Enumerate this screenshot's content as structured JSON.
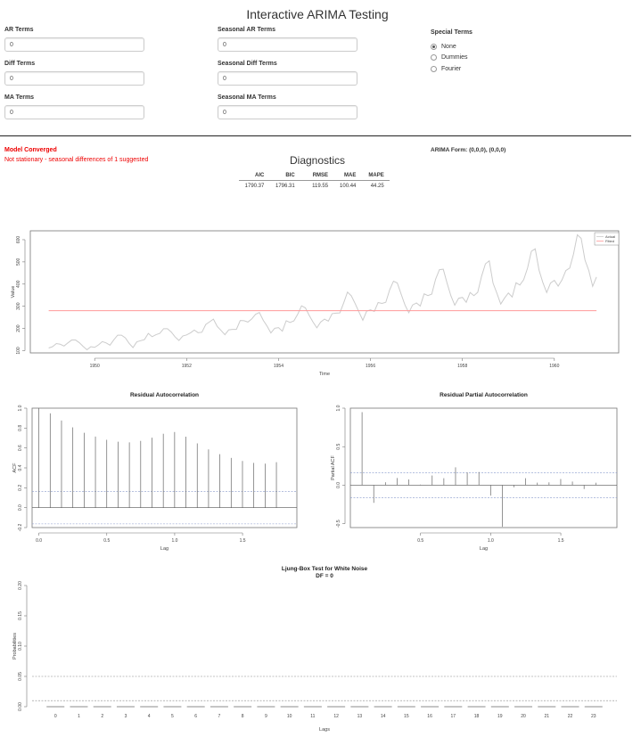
{
  "page": {
    "title": "Interactive ARIMA Testing"
  },
  "inputs": {
    "ar": {
      "label": "AR Terms",
      "value": "0"
    },
    "diff": {
      "label": "Diff Terms",
      "value": "0"
    },
    "ma": {
      "label": "MA Terms",
      "value": "0"
    },
    "sar": {
      "label": "Seasonal AR Terms",
      "value": "0"
    },
    "sdiff": {
      "label": "Seasonal Diff Terms",
      "value": "0"
    },
    "sma": {
      "label": "Seasonal MA Terms",
      "value": "0"
    }
  },
  "special_terms": {
    "label": "Special Terms",
    "options": [
      "None",
      "Dummies",
      "Fourier"
    ],
    "selected": "None"
  },
  "status": {
    "converged": "Model Converged",
    "stationarity": "Not stationary - seasonal differences of 1 suggested"
  },
  "arima_form": "ARIMA Form: (0,0,0), (0,0,0)",
  "diagnostics": {
    "title": "Diagnostics",
    "headers": [
      "AIC",
      "BIC",
      "RMSE",
      "MAE",
      "MAPE"
    ],
    "values": [
      "1790.37",
      "1796.31",
      "119.55",
      "100.44",
      "44.25"
    ]
  },
  "colors": {
    "fitted": "#ff9999",
    "actual": "#cccccc",
    "status": "#ee0000",
    "lines": "#555555"
  },
  "chart_data": [
    {
      "type": "line",
      "title": "",
      "xlabel": "Time",
      "ylabel": "Value",
      "xlim": [
        1948.6,
        1961.4
      ],
      "ylim": [
        90,
        640
      ],
      "x_ticks": [
        "1950",
        "1952",
        "1954",
        "1956",
        "1958",
        "1960"
      ],
      "y_ticks": [
        "100",
        "200",
        "300",
        "400",
        "500",
        "600"
      ],
      "legend": {
        "placement": "top-right",
        "entries": [
          "Actual",
          "Fitted"
        ]
      },
      "series": [
        {
          "name": "Actual",
          "start": 1949,
          "frequency": 12,
          "values": [
            112,
            118,
            132,
            129,
            121,
            135,
            148,
            148,
            136,
            119,
            104,
            118,
            115,
            126,
            141,
            135,
            125,
            149,
            170,
            170,
            158,
            133,
            114,
            140,
            145,
            150,
            178,
            163,
            172,
            178,
            199,
            199,
            184,
            162,
            146,
            166,
            171,
            180,
            193,
            181,
            183,
            218,
            230,
            242,
            209,
            191,
            172,
            194,
            196,
            196,
            236,
            235,
            229,
            243,
            264,
            272,
            237,
            211,
            180,
            201,
            204,
            188,
            235,
            227,
            234,
            264,
            302,
            293,
            259,
            229,
            203,
            229,
            242,
            233,
            267,
            269,
            270,
            315,
            364,
            347,
            312,
            274,
            237,
            278,
            284,
            277,
            317,
            313,
            318,
            374,
            413,
            405,
            355,
            306,
            271,
            306,
            315,
            301,
            356,
            348,
            355,
            422,
            465,
            467,
            404,
            347,
            305,
            336,
            340,
            318,
            362,
            348,
            363,
            435,
            491,
            505,
            404,
            359,
            310,
            337,
            360,
            342,
            406,
            396,
            420,
            472,
            548,
            559,
            463,
            407,
            362,
            405,
            417,
            391,
            419,
            461,
            472,
            535,
            622,
            606,
            508,
            461,
            390,
            432
          ]
        },
        {
          "name": "Fitted",
          "start": 1949,
          "end": 1960.917,
          "values": [
            280.3,
            280.3
          ]
        }
      ]
    },
    {
      "type": "bar",
      "title": "Residual Autocorrelation",
      "xlabel": "Lag",
      "ylabel": "ACF",
      "xlim": [
        -0.05,
        1.9
      ],
      "ylim": [
        -0.2,
        1.0
      ],
      "x_ticks": [
        "0.0",
        "0.5",
        "1.0",
        "1.5"
      ],
      "y_ticks": [
        "-0.2",
        "0.0",
        "0.2",
        "0.4",
        "0.6",
        "0.8",
        "1.0"
      ],
      "ci": 0.163,
      "lag_step": 0.0833,
      "values": [
        1.0,
        0.948,
        0.876,
        0.807,
        0.753,
        0.714,
        0.682,
        0.663,
        0.656,
        0.671,
        0.703,
        0.743,
        0.76,
        0.713,
        0.646,
        0.586,
        0.538,
        0.5,
        0.469,
        0.45,
        0.442,
        0.457
      ]
    },
    {
      "type": "bar",
      "title": "Residual Partial Autocorrelation",
      "xlabel": "Lag",
      "ylabel": "Partial ACF",
      "xlim": [
        0.0,
        1.9
      ],
      "ylim": [
        -0.55,
        1.0
      ],
      "x_ticks": [
        "0.5",
        "1.0",
        "1.5"
      ],
      "y_ticks": [
        "-0.5",
        "0.0",
        "0.5",
        "1.0"
      ],
      "ci": 0.163,
      "lag_step": 0.0833,
      "values": [
        0.948,
        -0.229,
        0.038,
        0.094,
        0.074,
        0.008,
        0.126,
        0.09,
        0.232,
        0.166,
        0.171,
        -0.135,
        -0.54,
        -0.027,
        0.091,
        0.033,
        0.037,
        0.081,
        0.047,
        -0.05,
        0.032
      ]
    },
    {
      "type": "scatter",
      "title": "Ljung-Box Test for White Noise",
      "subtitle": "DF = 0",
      "xlabel": "Lags",
      "ylabel": "Probabilities",
      "xlim": [
        -1,
        24
      ],
      "ylim": [
        0,
        0.2
      ],
      "x_ticks": [
        "0",
        "1",
        "2",
        "3",
        "4",
        "5",
        "6",
        "7",
        "8",
        "9",
        "10",
        "11",
        "12",
        "13",
        "14",
        "15",
        "16",
        "17",
        "18",
        "19",
        "20",
        "21",
        "22",
        "23"
      ],
      "y_ticks": [
        "0.00",
        "0.05",
        "0.10",
        "0.15",
        "0.20"
      ],
      "reference_lines": [
        0.05,
        0.01
      ],
      "values": [
        0,
        0,
        0,
        0,
        0,
        0,
        0,
        0,
        0,
        0,
        0,
        0,
        0,
        0,
        0,
        0,
        0,
        0,
        0,
        0,
        0,
        0,
        0,
        0
      ]
    }
  ]
}
